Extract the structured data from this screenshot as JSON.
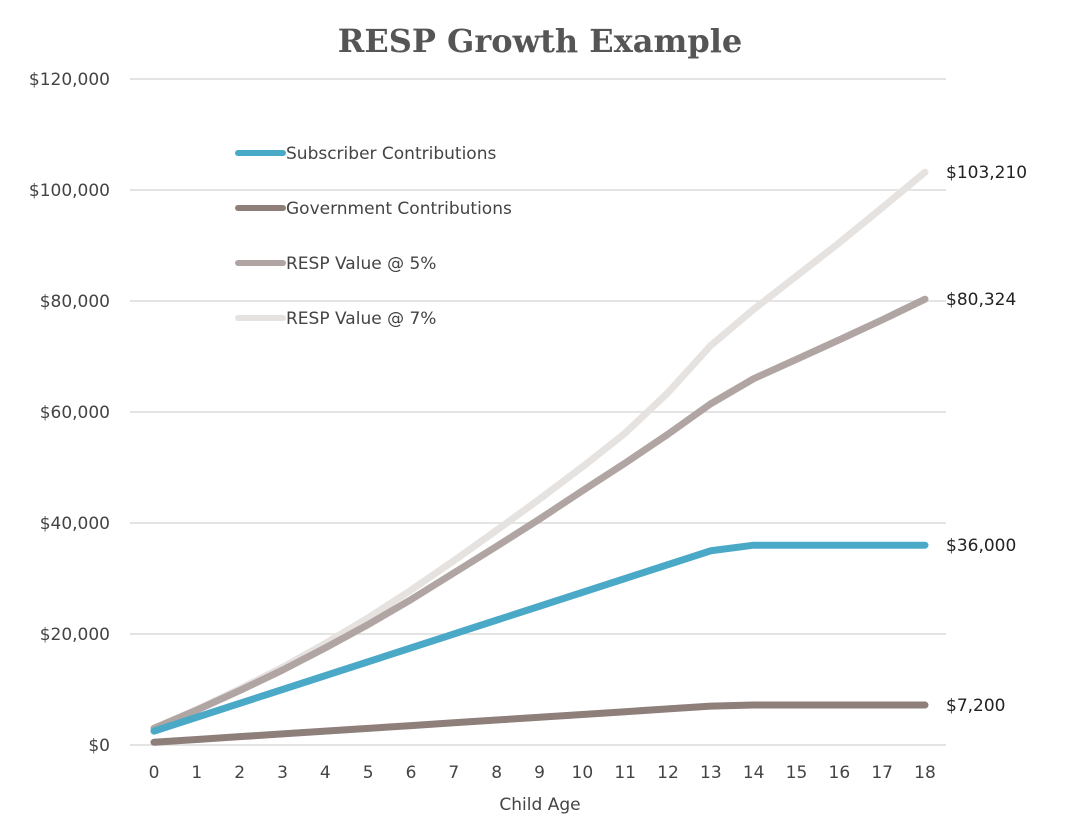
{
  "chart_data": {
    "type": "line",
    "title": "RESP Growth Example",
    "xlabel": "Child Age",
    "ylabel": "",
    "x": [
      0,
      1,
      2,
      3,
      4,
      5,
      6,
      7,
      8,
      9,
      10,
      11,
      12,
      13,
      14,
      15,
      16,
      17,
      18
    ],
    "ylim": [
      0,
      120000
    ],
    "yticks": [
      0,
      20000,
      40000,
      60000,
      80000,
      100000,
      120000
    ],
    "ytick_labels": [
      "$0",
      "$20,000",
      "$40,000",
      "$60,000",
      "$80,000",
      "$100,000",
      "$120,000"
    ],
    "grid": true,
    "legend_placement": "top-left",
    "series": [
      {
        "name": "Subscriber Contributions",
        "color": "#4ba9c8",
        "values": [
          2500,
          5000,
          7500,
          10000,
          12500,
          15000,
          17500,
          20000,
          22500,
          25000,
          27500,
          30000,
          32500,
          35000,
          36000,
          36000,
          36000,
          36000,
          36000
        ],
        "end_label": "$36,000"
      },
      {
        "name": "Government Contributions",
        "color": "#8e7f7a",
        "values": [
          500,
          1000,
          1500,
          2000,
          2500,
          3000,
          3500,
          4000,
          4500,
          5000,
          5500,
          6000,
          6500,
          7000,
          7200,
          7200,
          7200,
          7200,
          7200
        ],
        "end_label": "$7,200"
      },
      {
        "name": "RESP Value @ 5%",
        "color": "#b0a5a2",
        "values": [
          3000,
          6300,
          9800,
          13500,
          17500,
          21700,
          26200,
          31000,
          35800,
          40700,
          45800,
          50800,
          56000,
          61500,
          66000,
          69500,
          73000,
          76600,
          80324
        ],
        "end_label": "$80,324"
      },
      {
        "name": "RESP Value @ 7%",
        "color": "#e6e2e0",
        "values": [
          3000,
          6400,
          10100,
          14000,
          18300,
          22900,
          27900,
          33200,
          38700,
          44300,
          50100,
          56200,
          63500,
          72000,
          78500,
          84500,
          90500,
          96800,
          103210
        ],
        "end_label": "$103,210"
      }
    ]
  }
}
